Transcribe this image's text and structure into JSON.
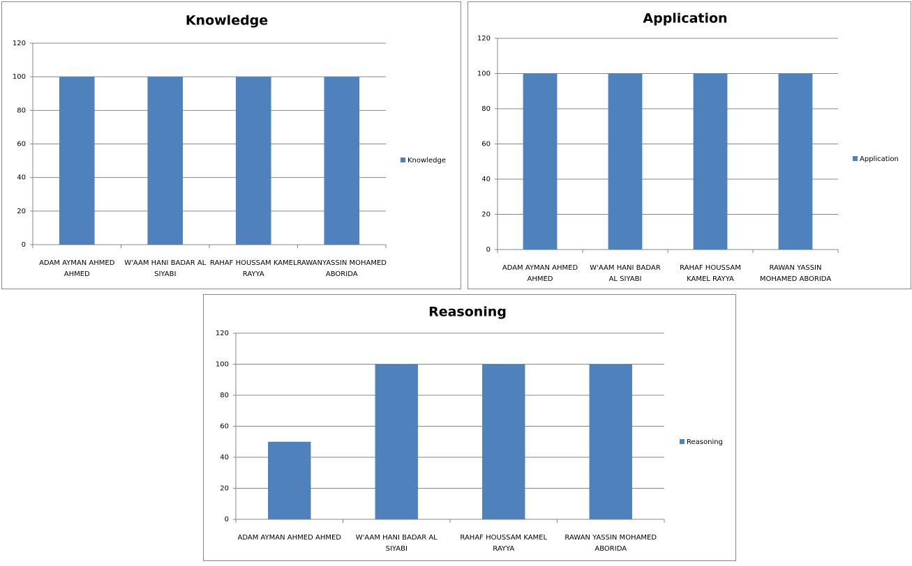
{
  "chart_data": [
    {
      "type": "bar",
      "title": "Knowledge",
      "categories": [
        "ADAM AYMAN AHMED AHMED",
        "W'AAM HANI BADAR AL SIYABI",
        "RAHAF HOUSSAM KAMEL RAYYA",
        "RAWANYASSIN MOHAMED ABORIDA"
      ],
      "series": [
        {
          "name": "Knowledge",
          "color": "#4f81bd",
          "values": [
            100,
            100,
            100,
            100
          ]
        }
      ],
      "ylim": [
        0,
        120
      ],
      "yticks": [
        0,
        20,
        40,
        60,
        80,
        100,
        120
      ],
      "grid": true,
      "legend": "right"
    },
    {
      "type": "bar",
      "title": "Application",
      "categories": [
        "ADAM AYMAN AHMED AHMED",
        "W'AAM HANI BADAR AL SIYABI",
        "RAHAF HOUSSAM KAMEL RAYYA",
        "RAWAN YASSIN MOHAMED ABORIDA"
      ],
      "series": [
        {
          "name": "Application",
          "color": "#4f81bd",
          "values": [
            100,
            100,
            100,
            100
          ]
        }
      ],
      "ylim": [
        0,
        120
      ],
      "yticks": [
        0,
        20,
        40,
        60,
        80,
        100,
        120
      ],
      "grid": true,
      "legend": "right"
    },
    {
      "type": "bar",
      "title": "Reasoning",
      "categories": [
        "ADAM AYMAN AHMED AHMED",
        "W'AAM HANI BADAR AL SIYABI",
        "RAHAF HOUSSAM KAMEL RAYYA",
        "RAWAN YASSIN MOHAMED ABORIDA"
      ],
      "series": [
        {
          "name": "Reasoning",
          "color": "#4f81bd",
          "values": [
            50,
            100,
            100,
            100
          ]
        }
      ],
      "ylim": [
        0,
        120
      ],
      "yticks": [
        0,
        20,
        40,
        60,
        80,
        100,
        120
      ],
      "grid": true,
      "legend": "right"
    }
  ]
}
